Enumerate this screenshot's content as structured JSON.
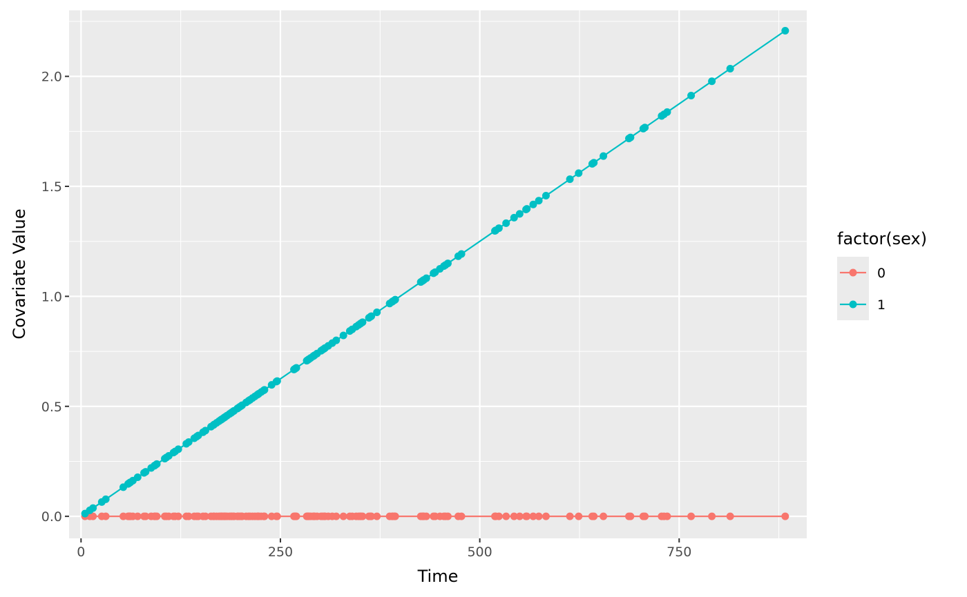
{
  "chart_data": {
    "type": "line",
    "title": "",
    "xlabel": "Time",
    "ylabel": "Covariate Value",
    "xlim": [
      -15,
      910
    ],
    "ylim": [
      -0.1,
      2.3
    ],
    "x_ticks": [
      0,
      250,
      500,
      750
    ],
    "x_tick_labels": [
      "0",
      "250",
      "500",
      "750"
    ],
    "x_minor_ticks": [
      125,
      375,
      625,
      875
    ],
    "y_ticks": [
      0.0,
      0.5,
      1.0,
      1.5,
      2.0
    ],
    "y_tick_labels": [
      "0.0",
      "0.5",
      "1.0",
      "1.5",
      "2.0"
    ],
    "y_minor_ticks": [
      0.25,
      0.75,
      1.25,
      1.75,
      2.25
    ],
    "grid": true,
    "panel_background": "#ebebeb",
    "legend": {
      "title": "factor(sex)",
      "position": "right",
      "entries": [
        "0",
        "1"
      ]
    },
    "series": [
      {
        "name": "0",
        "color": "#f8766d",
        "x": [
          5,
          11,
          15,
          26,
          31,
          53,
          59,
          60,
          61,
          62,
          65,
          71,
          79,
          81,
          88,
          92,
          93,
          95,
          105,
          107,
          110,
          116,
          118,
          122,
          132,
          135,
          142,
          145,
          147,
          153,
          156,
          163,
          166,
          167,
          170,
          173,
          175,
          176,
          177,
          179,
          180,
          181,
          183,
          186,
          188,
          189,
          191,
          192,
          196,
          197,
          199,
          201,
          202,
          207,
          210,
          212,
          215,
          218,
          221,
          222,
          223,
          226,
          229,
          230,
          239,
          245,
          246,
          267,
          268,
          269,
          270,
          283,
          284,
          285,
          286,
          288,
          291,
          292,
          293,
          296,
          301,
          303,
          305,
          306,
          310,
          315,
          320,
          329,
          337,
          340,
          345,
          348,
          350,
          351,
          353,
          361,
          363,
          364,
          371,
          387,
          390,
          391,
          393,
          394,
          426,
          428,
          429,
          430,
          433,
          442,
          444,
          450,
          455,
          457,
          460,
          473,
          477,
          519,
          520,
          524,
          533,
          543,
          550,
          558,
          559,
          567,
          574,
          583,
          613,
          624,
          641,
          643,
          655,
          687,
          689,
          705,
          707,
          728,
          731,
          735,
          765,
          791,
          814,
          883
        ],
        "y": [
          0,
          0,
          0,
          0,
          0,
          0,
          0,
          0,
          0,
          0,
          0,
          0,
          0,
          0,
          0,
          0,
          0,
          0,
          0,
          0,
          0,
          0,
          0,
          0,
          0,
          0,
          0,
          0,
          0,
          0,
          0,
          0,
          0,
          0,
          0,
          0,
          0,
          0,
          0,
          0,
          0,
          0,
          0,
          0,
          0,
          0,
          0,
          0,
          0,
          0,
          0,
          0,
          0,
          0,
          0,
          0,
          0,
          0,
          0,
          0,
          0,
          0,
          0,
          0,
          0,
          0,
          0,
          0,
          0,
          0,
          0,
          0,
          0,
          0,
          0,
          0,
          0,
          0,
          0,
          0,
          0,
          0,
          0,
          0,
          0,
          0,
          0,
          0,
          0,
          0,
          0,
          0,
          0,
          0,
          0,
          0,
          0,
          0,
          0,
          0,
          0,
          0,
          0,
          0,
          0,
          0,
          0,
          0,
          0,
          0,
          0,
          0,
          0,
          0,
          0,
          0,
          0,
          0,
          0,
          0,
          0,
          0,
          0,
          0,
          0,
          0,
          0,
          0,
          0,
          0,
          0,
          0,
          0,
          0,
          0,
          0,
          0,
          0,
          0,
          0,
          0,
          0,
          0,
          0
        ]
      },
      {
        "name": "1",
        "color": "#00bfc4",
        "x": [
          5,
          11,
          15,
          26,
          31,
          53,
          59,
          60,
          61,
          62,
          65,
          71,
          79,
          81,
          88,
          92,
          93,
          95,
          105,
          107,
          110,
          116,
          118,
          122,
          132,
          135,
          142,
          145,
          147,
          153,
          156,
          163,
          166,
          167,
          170,
          173,
          175,
          176,
          177,
          179,
          180,
          181,
          183,
          186,
          188,
          189,
          191,
          192,
          196,
          197,
          199,
          201,
          202,
          207,
          210,
          212,
          215,
          218,
          221,
          222,
          223,
          226,
          229,
          230,
          239,
          245,
          246,
          267,
          268,
          269,
          270,
          283,
          284,
          285,
          286,
          288,
          291,
          292,
          293,
          296,
          301,
          303,
          305,
          306,
          310,
          315,
          320,
          329,
          337,
          340,
          345,
          348,
          350,
          351,
          353,
          361,
          363,
          364,
          371,
          387,
          390,
          391,
          393,
          394,
          426,
          428,
          429,
          430,
          433,
          442,
          444,
          450,
          455,
          457,
          460,
          473,
          477,
          519,
          520,
          524,
          533,
          543,
          550,
          558,
          559,
          567,
          574,
          583,
          613,
          624,
          641,
          643,
          655,
          687,
          689,
          705,
          707,
          728,
          731,
          735,
          765,
          791,
          814,
          883
        ],
        "y": [
          0.0125,
          0.0275,
          0.0375,
          0.065,
          0.0775,
          0.1325,
          0.1475,
          0.15,
          0.1525,
          0.155,
          0.1625,
          0.1775,
          0.1975,
          0.2025,
          0.22,
          0.23,
          0.2325,
          0.2375,
          0.2625,
          0.2675,
          0.275,
          0.29,
          0.295,
          0.305,
          0.33,
          0.3375,
          0.355,
          0.3625,
          0.3675,
          0.3825,
          0.39,
          0.4075,
          0.415,
          0.4175,
          0.425,
          0.4325,
          0.4375,
          0.44,
          0.4425,
          0.4475,
          0.45,
          0.4525,
          0.4575,
          0.465,
          0.47,
          0.4725,
          0.4775,
          0.48,
          0.49,
          0.4925,
          0.4975,
          0.5025,
          0.505,
          0.5175,
          0.525,
          0.53,
          0.5375,
          0.545,
          0.5525,
          0.555,
          0.5575,
          0.565,
          0.5725,
          0.575,
          0.5975,
          0.6125,
          0.615,
          0.6675,
          0.67,
          0.6725,
          0.675,
          0.7075,
          0.71,
          0.7125,
          0.715,
          0.72,
          0.7275,
          0.73,
          0.7325,
          0.74,
          0.7525,
          0.7575,
          0.7625,
          0.765,
          0.775,
          0.7875,
          0.8,
          0.8225,
          0.8425,
          0.85,
          0.8625,
          0.87,
          0.875,
          0.8775,
          0.8825,
          0.9025,
          0.9075,
          0.91,
          0.9275,
          0.9675,
          0.975,
          0.9775,
          0.9825,
          0.985,
          1.065,
          1.07,
          1.0725,
          1.075,
          1.0825,
          1.105,
          1.11,
          1.125,
          1.1375,
          1.1425,
          1.15,
          1.1825,
          1.1925,
          1.2975,
          1.3,
          1.31,
          1.3325,
          1.3575,
          1.375,
          1.395,
          1.3975,
          1.4175,
          1.435,
          1.4575,
          1.5325,
          1.56,
          1.6025,
          1.6075,
          1.6375,
          1.7175,
          1.7225,
          1.7625,
          1.7675,
          1.82,
          1.8275,
          1.8375,
          1.9125,
          1.9775,
          2.035,
          2.2075
        ]
      }
    ]
  }
}
